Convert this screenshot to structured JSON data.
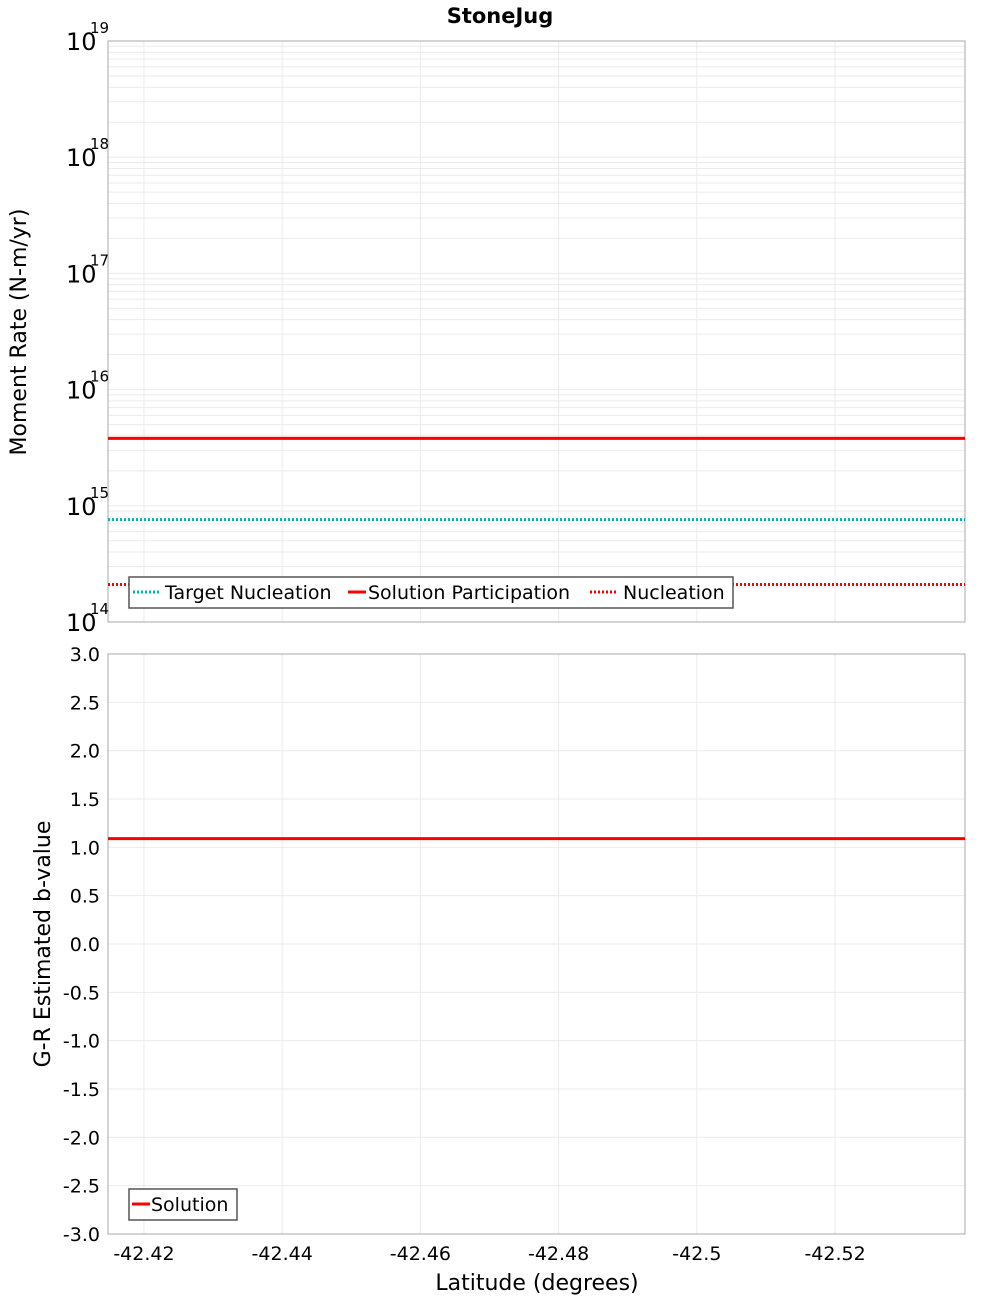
{
  "chart_data": [
    {
      "type": "line",
      "title": "StoneJug",
      "xlabel": "Latitude (degrees)",
      "ylabel": "Moment Rate (N-m/yr)",
      "yscale": "log",
      "ylim": [
        100000000000000.0,
        1e+19
      ],
      "xlim": [
        -42.4148,
        -42.5388
      ],
      "x_reversed_direction": true,
      "y_tick_exponents": [
        14,
        15,
        16,
        17,
        18,
        19
      ],
      "grid": true,
      "legend_position": "lower left",
      "series": [
        {
          "name": "Target Nucleation",
          "color": "#00b4b4",
          "style": "dotted",
          "x": [
            -42.4148,
            -42.5388
          ],
          "values": [
            760000000000000.0,
            760000000000000.0
          ]
        },
        {
          "name": "Solution Participation",
          "color": "#ff0000",
          "style": "solid",
          "x": [
            -42.4148,
            -42.5388
          ],
          "values": [
            3800000000000000.0,
            3800000000000000.0
          ]
        },
        {
          "name": "Nucleation",
          "color": "#ff0000",
          "style": "dotted",
          "x": [
            -42.4148,
            -42.5388
          ],
          "values": [
            210000000000000.0,
            210000000000000.0
          ]
        }
      ]
    },
    {
      "type": "line",
      "title": "",
      "xlabel": "Latitude (degrees)",
      "ylabel": "G-R Estimated b-value",
      "ylim": [
        -3.0,
        3.0
      ],
      "xlim": [
        -42.4148,
        -42.5388
      ],
      "y_ticks": [
        "3.0",
        "2.5",
        "2.0",
        "1.5",
        "1.0",
        "0.5",
        "0.0",
        "-0.5",
        "-1.0",
        "-1.5",
        "-2.0",
        "-2.5",
        "-3.0"
      ],
      "x_ticks": [
        "-42.42",
        "-42.44",
        "-42.46",
        "-42.48",
        "-42.5",
        "-42.52"
      ],
      "grid": true,
      "legend_position": "lower left",
      "series": [
        {
          "name": "Solution",
          "color": "#ff0000",
          "style": "solid",
          "x": [
            -42.4148,
            -42.5388
          ],
          "values": [
            1.09,
            1.09
          ]
        }
      ]
    }
  ],
  "labels": {
    "title": "StoneJug",
    "top_ylabel": "Moment Rate (N-m/yr)",
    "bottom_ylabel": "G-R Estimated b-value",
    "xlabel": "Latitude (degrees)",
    "legend_top": [
      "Target Nucleation",
      "Solution Participation",
      "Nucleation"
    ],
    "legend_bottom": [
      "Solution"
    ]
  }
}
